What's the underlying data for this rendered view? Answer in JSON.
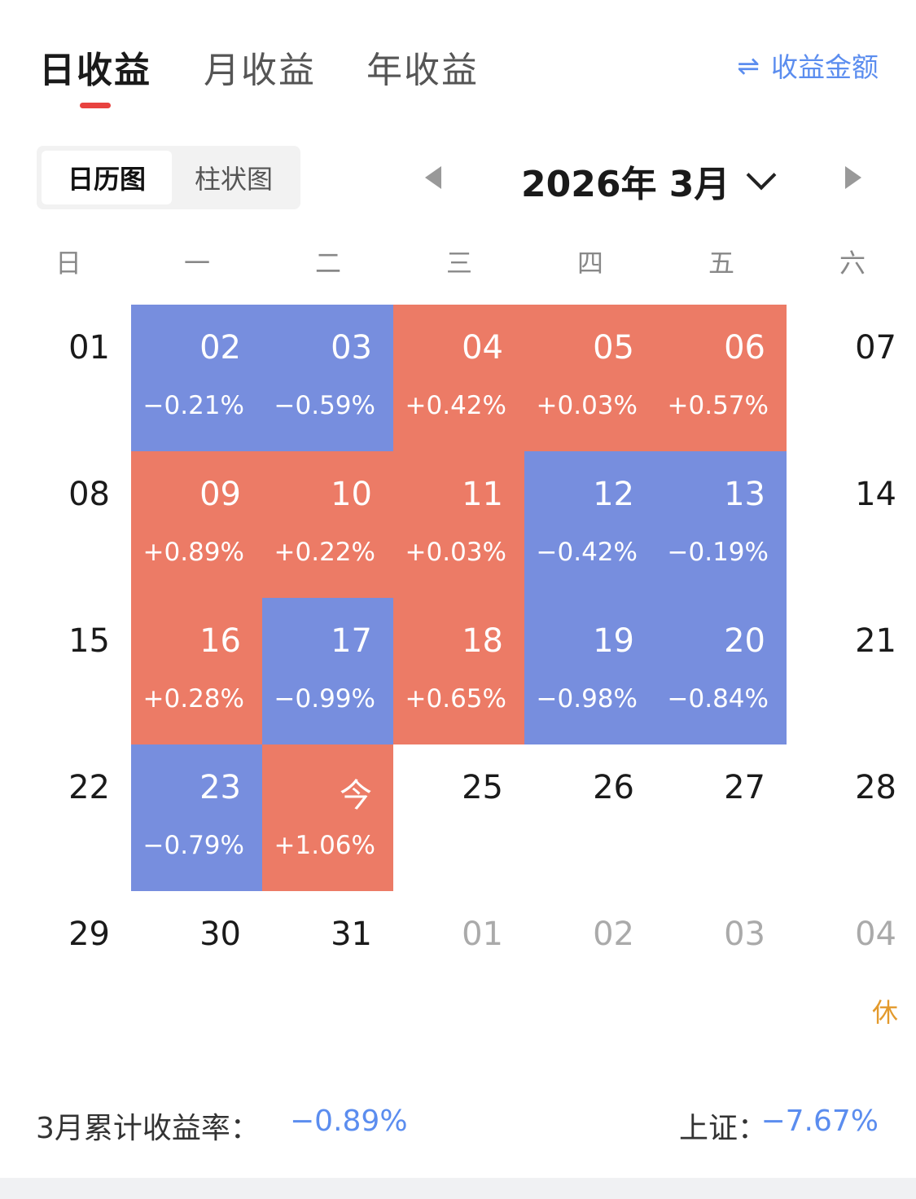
{
  "tabs": [
    {
      "label": "日收益",
      "active": true
    },
    {
      "label": "月收益",
      "active": false
    },
    {
      "label": "年收益",
      "active": false
    }
  ],
  "toggle": {
    "icon": "swap-arrows-icon",
    "glyph": "⇌",
    "label": "收益金额"
  },
  "view_switch": {
    "calendar": "日历图",
    "bar": "柱状图"
  },
  "month_nav": {
    "title": "2026年 3月",
    "prev_icon": "triangle-left-icon",
    "next_icon": "triangle-right-icon",
    "dropdown_icon": "chevron-down-icon"
  },
  "weekdays": [
    "日",
    "一",
    "二",
    "三",
    "四",
    "五",
    "六"
  ],
  "calendar": {
    "weeks": [
      [
        {
          "day": "01"
        },
        {
          "day": "02",
          "pct": "−0.21%",
          "trend": "down"
        },
        {
          "day": "03",
          "pct": "−0.59%",
          "trend": "down"
        },
        {
          "day": "04",
          "pct": "+0.42%",
          "trend": "up"
        },
        {
          "day": "05",
          "pct": "+0.03%",
          "trend": "up"
        },
        {
          "day": "06",
          "pct": "+0.57%",
          "trend": "up"
        },
        {
          "day": "07"
        }
      ],
      [
        {
          "day": "08"
        },
        {
          "day": "09",
          "pct": "+0.89%",
          "trend": "up"
        },
        {
          "day": "10",
          "pct": "+0.22%",
          "trend": "up"
        },
        {
          "day": "11",
          "pct": "+0.03%",
          "trend": "up"
        },
        {
          "day": "12",
          "pct": "−0.42%",
          "trend": "down"
        },
        {
          "day": "13",
          "pct": "−0.19%",
          "trend": "down"
        },
        {
          "day": "14"
        }
      ],
      [
        {
          "day": "15"
        },
        {
          "day": "16",
          "pct": "+0.28%",
          "trend": "up"
        },
        {
          "day": "17",
          "pct": "−0.99%",
          "trend": "down"
        },
        {
          "day": "18",
          "pct": "+0.65%",
          "trend": "up"
        },
        {
          "day": "19",
          "pct": "−0.98%",
          "trend": "down"
        },
        {
          "day": "20",
          "pct": "−0.84%",
          "trend": "down"
        },
        {
          "day": "21"
        }
      ],
      [
        {
          "day": "22"
        },
        {
          "day": "23",
          "pct": "−0.79%",
          "trend": "down"
        },
        {
          "day": "今",
          "pct": "+1.06%",
          "trend": "up"
        },
        {
          "day": "25"
        },
        {
          "day": "26"
        },
        {
          "day": "27"
        },
        {
          "day": "28"
        }
      ],
      [
        {
          "day": "29"
        },
        {
          "day": "30"
        },
        {
          "day": "31"
        },
        {
          "day": "01",
          "other_month": true
        },
        {
          "day": "02",
          "other_month": true
        },
        {
          "day": "03",
          "other_month": true
        },
        {
          "day": "04",
          "other_month": true,
          "tag": "休"
        }
      ]
    ]
  },
  "summary": {
    "label": "3月累计收益率：",
    "value": "−0.89%",
    "index_label": "上证：",
    "index_value": "−7.67%"
  },
  "colors": {
    "up": "#ec7b66",
    "down": "#778ede",
    "accent_blue": "#5b8def",
    "tab_indicator": "#e8423f",
    "holiday": "#e39a2c"
  }
}
